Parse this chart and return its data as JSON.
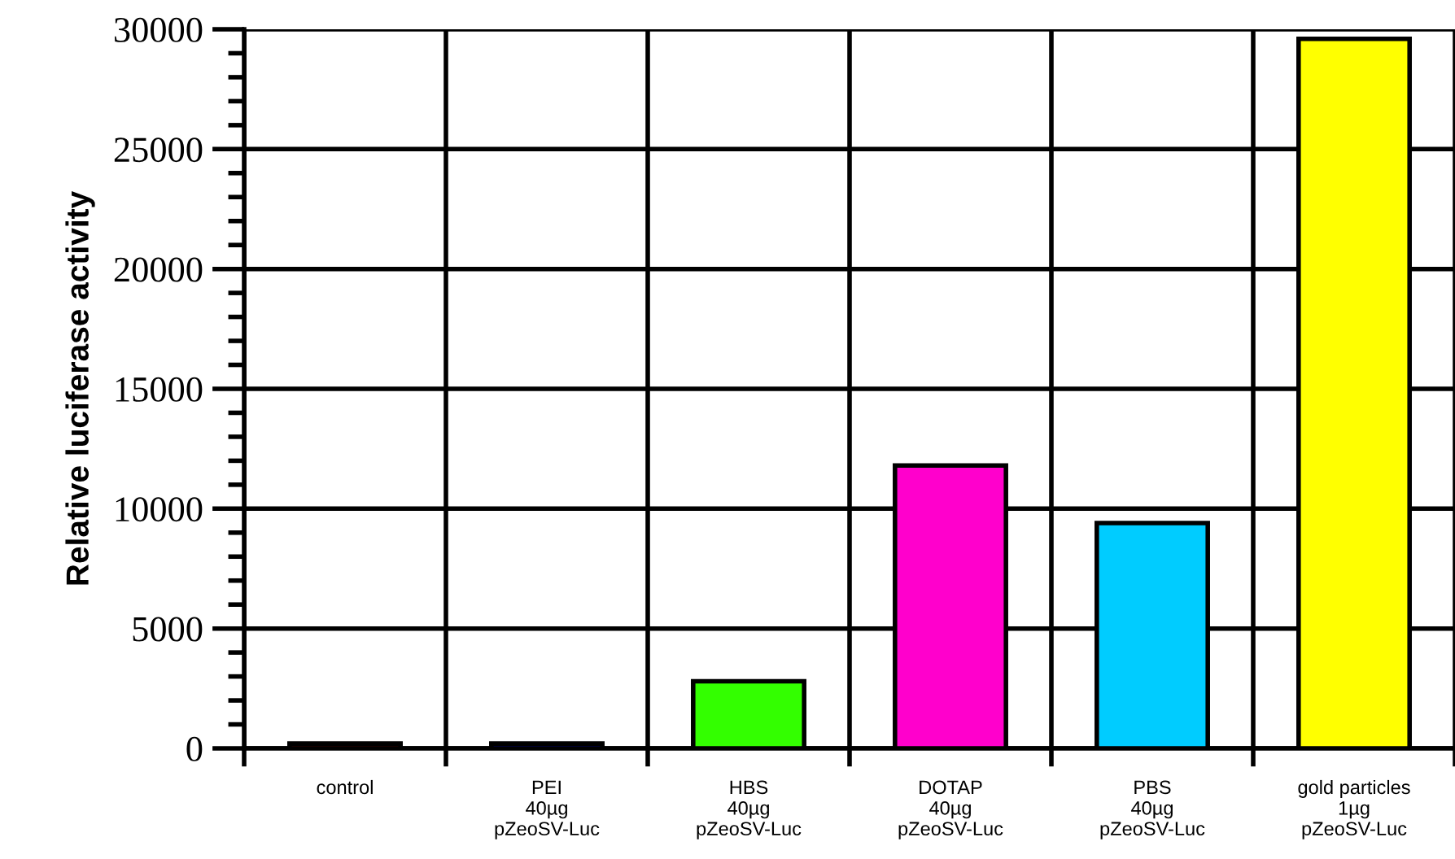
{
  "chart_data": {
    "type": "bar",
    "ylabel": "Relative luciferase activity",
    "categories": [
      "control",
      "PEI\n40µg\npZeoSV-Luc",
      "HBS\n40µg\npZeoSV-Luc",
      "DOTAP\n40µg\npZeoSV-Luc",
      "PBS\n40µg\npZeoSV-Luc",
      "gold particles\n1µg\npZeoSV-Luc"
    ],
    "values": [
      200,
      200,
      2800,
      11800,
      9400,
      29600
    ],
    "colors": [
      "#660000",
      "#0000cc",
      "#33ff00",
      "#ff00cc",
      "#00ccff",
      "#ffff00"
    ],
    "ylim": [
      0,
      30000
    ],
    "yticks": [
      0,
      5000,
      10000,
      15000,
      20000,
      25000,
      30000
    ],
    "grid": true
  }
}
